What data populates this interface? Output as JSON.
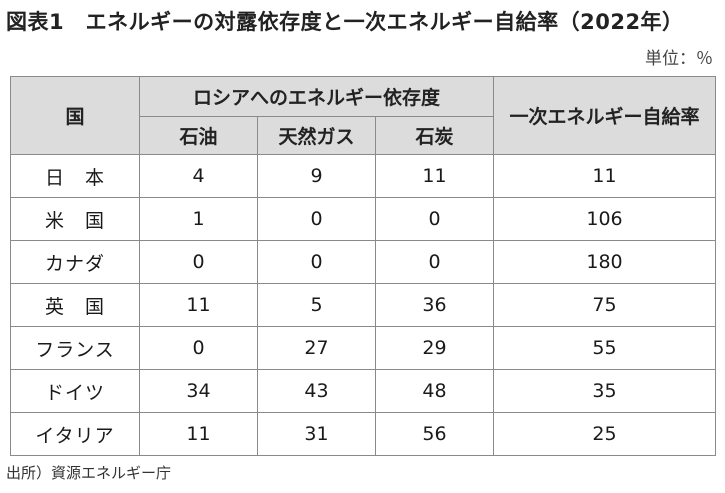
{
  "title": "図表1　エネルギーの対露依存度と一次エネルギー自給率（2022年）",
  "unit": "単位：％",
  "table": {
    "col_country": "国",
    "group_header": "ロシアへのエネルギー依存度",
    "col_oil": "石油",
    "col_gas": "天然ガス",
    "col_coal": "石炭",
    "col_self": "一次エネルギー自給率",
    "rows": [
      {
        "country": "日　本",
        "oil": "4",
        "gas": "9",
        "coal": "11",
        "self": "11"
      },
      {
        "country": "米　国",
        "oil": "1",
        "gas": "0",
        "coal": "0",
        "self": "106"
      },
      {
        "country": "カナダ",
        "oil": "0",
        "gas": "0",
        "coal": "0",
        "self": "180"
      },
      {
        "country": "英　国",
        "oil": "11",
        "gas": "5",
        "coal": "36",
        "self": "75"
      },
      {
        "country": "フランス",
        "oil": "0",
        "gas": "27",
        "coal": "29",
        "self": "55"
      },
      {
        "country": "ドイツ",
        "oil": "34",
        "gas": "43",
        "coal": "48",
        "self": "35"
      },
      {
        "country": "イタリア",
        "oil": "11",
        "gas": "31",
        "coal": "56",
        "self": "25"
      }
    ]
  },
  "source": "出所）資源エネルギー庁"
}
